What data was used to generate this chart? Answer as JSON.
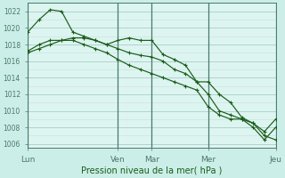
{
  "background_color": "#cceee8",
  "plot_bg_color": "#ddf5f0",
  "grid_major_color": "#aacccc",
  "grid_minor_color": "#ccdddd",
  "line_color": "#1a5c1a",
  "vline_color": "#4a7a6a",
  "title": "Pression niveau de la mer( hPa )",
  "ylim": [
    1005.5,
    1023.0
  ],
  "yticks": [
    1006,
    1008,
    1010,
    1012,
    1014,
    1016,
    1018,
    1020,
    1022
  ],
  "xlabel_days": [
    "Lun",
    "Ven",
    "Mar",
    "Mer",
    "Jeu"
  ],
  "xlabel_xpos": [
    0,
    8,
    11,
    16,
    22
  ],
  "vline_positions": [
    0,
    8,
    11,
    16,
    22
  ],
  "series": [
    [
      1019.5,
      1021.0,
      1022.2,
      1022.0,
      1019.5,
      1019.0,
      1018.5,
      1018.0,
      1018.5,
      1018.8,
      1018.5,
      1018.5,
      1016.8,
      1016.2,
      1015.5,
      1013.5,
      1012.0,
      1010.0,
      1009.5,
      1009.0,
      1008.5,
      1007.0,
      1006.5
    ],
    [
      1017.2,
      1018.0,
      1018.5,
      1018.5,
      1018.8,
      1018.8,
      1018.5,
      1018.0,
      1017.5,
      1017.0,
      1016.7,
      1016.5,
      1016.0,
      1015.0,
      1014.5,
      1013.5,
      1013.5,
      1012.0,
      1011.0,
      1009.2,
      1008.5,
      1007.5,
      1009.0
    ],
    [
      1017.0,
      1017.5,
      1018.0,
      1018.5,
      1018.5,
      1018.0,
      1017.5,
      1017.0,
      1016.2,
      1015.5,
      1015.0,
      1014.5,
      1014.0,
      1013.5,
      1013.0,
      1012.5,
      1010.5,
      1009.5,
      1009.0,
      1009.0,
      1008.0,
      1006.5,
      1008.0
    ]
  ],
  "n_points": 23,
  "tick_fontsize": 5.5,
  "xlabel_fontsize": 6.5,
  "title_fontsize": 7.0,
  "linewidth": 0.85,
  "markersize": 2.5
}
